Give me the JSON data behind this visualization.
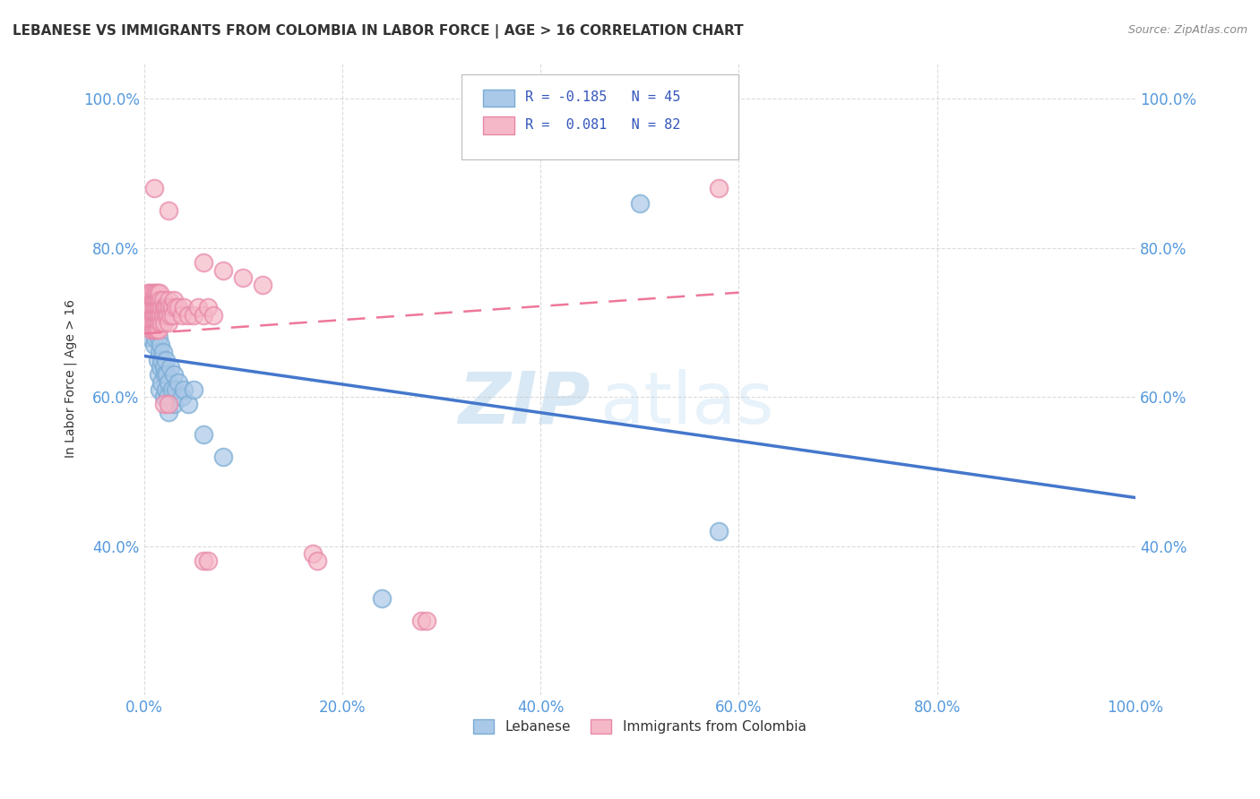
{
  "title": "LEBANESE VS IMMIGRANTS FROM COLOMBIA IN LABOR FORCE | AGE > 16 CORRELATION CHART",
  "source": "Source: ZipAtlas.com",
  "ylabel": "In Labor Force | Age > 16",
  "xlim": [
    0.0,
    1.0
  ],
  "ylim": [
    0.2,
    1.05
  ],
  "xticks": [
    0.0,
    0.2,
    0.4,
    0.6,
    0.8,
    1.0
  ],
  "yticks": [
    0.2,
    0.4,
    0.6,
    0.8,
    1.0
  ],
  "xticklabels": [
    "0.0%",
    "20.0%",
    "40.0%",
    "60.0%",
    "80.0%",
    "100.0%"
  ],
  "yticklabels": [
    "",
    "40.0%",
    "60.0%",
    "80.0%",
    "100.0%"
  ],
  "background_color": "#ffffff",
  "grid_color": "#cccccc",
  "watermark_zip": "ZIP",
  "watermark_atlas": "atlas",
  "blue_color": "#aac8e8",
  "blue_edge_color": "#7aacd4",
  "pink_color": "#f5b8c8",
  "pink_edge_color": "#e888a8",
  "blue_line_color": "#4477cc",
  "pink_line_color": "#ee7799",
  "blue_scatter": [
    [
      0.004,
      0.72
    ],
    [
      0.006,
      0.7
    ],
    [
      0.007,
      0.68
    ],
    [
      0.008,
      0.71
    ],
    [
      0.009,
      0.69
    ],
    [
      0.01,
      0.67
    ],
    [
      0.01,
      0.72
    ],
    [
      0.011,
      0.68
    ],
    [
      0.012,
      0.7
    ],
    [
      0.013,
      0.69
    ],
    [
      0.014,
      0.71
    ],
    [
      0.014,
      0.65
    ],
    [
      0.015,
      0.68
    ],
    [
      0.015,
      0.63
    ],
    [
      0.016,
      0.66
    ],
    [
      0.016,
      0.61
    ],
    [
      0.017,
      0.67
    ],
    [
      0.017,
      0.64
    ],
    [
      0.018,
      0.65
    ],
    [
      0.018,
      0.62
    ],
    [
      0.019,
      0.66
    ],
    [
      0.02,
      0.64
    ],
    [
      0.02,
      0.6
    ],
    [
      0.021,
      0.63
    ],
    [
      0.022,
      0.65
    ],
    [
      0.022,
      0.61
    ],
    [
      0.023,
      0.63
    ],
    [
      0.024,
      0.6
    ],
    [
      0.025,
      0.62
    ],
    [
      0.025,
      0.58
    ],
    [
      0.027,
      0.64
    ],
    [
      0.028,
      0.61
    ],
    [
      0.03,
      0.63
    ],
    [
      0.03,
      0.59
    ],
    [
      0.032,
      0.61
    ],
    [
      0.035,
      0.62
    ],
    [
      0.038,
      0.6
    ],
    [
      0.04,
      0.61
    ],
    [
      0.045,
      0.59
    ],
    [
      0.05,
      0.61
    ],
    [
      0.06,
      0.55
    ],
    [
      0.08,
      0.52
    ],
    [
      0.5,
      0.86
    ],
    [
      0.58,
      0.42
    ],
    [
      0.24,
      0.33
    ]
  ],
  "pink_scatter": [
    [
      0.002,
      0.72
    ],
    [
      0.003,
      0.73
    ],
    [
      0.004,
      0.74
    ],
    [
      0.004,
      0.71
    ],
    [
      0.005,
      0.73
    ],
    [
      0.005,
      0.7
    ],
    [
      0.006,
      0.74
    ],
    [
      0.006,
      0.71
    ],
    [
      0.007,
      0.73
    ],
    [
      0.007,
      0.72
    ],
    [
      0.007,
      0.69
    ],
    [
      0.008,
      0.74
    ],
    [
      0.008,
      0.72
    ],
    [
      0.008,
      0.7
    ],
    [
      0.009,
      0.73
    ],
    [
      0.009,
      0.71
    ],
    [
      0.009,
      0.69
    ],
    [
      0.01,
      0.74
    ],
    [
      0.01,
      0.72
    ],
    [
      0.01,
      0.7
    ],
    [
      0.011,
      0.73
    ],
    [
      0.011,
      0.71
    ],
    [
      0.011,
      0.69
    ],
    [
      0.012,
      0.74
    ],
    [
      0.012,
      0.72
    ],
    [
      0.012,
      0.7
    ],
    [
      0.013,
      0.73
    ],
    [
      0.013,
      0.71
    ],
    [
      0.013,
      0.69
    ],
    [
      0.014,
      0.74
    ],
    [
      0.014,
      0.72
    ],
    [
      0.014,
      0.7
    ],
    [
      0.015,
      0.73
    ],
    [
      0.015,
      0.71
    ],
    [
      0.015,
      0.69
    ],
    [
      0.016,
      0.74
    ],
    [
      0.016,
      0.72
    ],
    [
      0.016,
      0.7
    ],
    [
      0.017,
      0.73
    ],
    [
      0.017,
      0.71
    ],
    [
      0.018,
      0.72
    ],
    [
      0.018,
      0.7
    ],
    [
      0.019,
      0.73
    ],
    [
      0.019,
      0.71
    ],
    [
      0.02,
      0.72
    ],
    [
      0.02,
      0.7
    ],
    [
      0.021,
      0.72
    ],
    [
      0.022,
      0.71
    ],
    [
      0.023,
      0.72
    ],
    [
      0.024,
      0.71
    ],
    [
      0.025,
      0.73
    ],
    [
      0.025,
      0.7
    ],
    [
      0.026,
      0.72
    ],
    [
      0.027,
      0.71
    ],
    [
      0.028,
      0.72
    ],
    [
      0.029,
      0.71
    ],
    [
      0.03,
      0.73
    ],
    [
      0.032,
      0.72
    ],
    [
      0.035,
      0.72
    ],
    [
      0.038,
      0.71
    ],
    [
      0.04,
      0.72
    ],
    [
      0.045,
      0.71
    ],
    [
      0.05,
      0.71
    ],
    [
      0.055,
      0.72
    ],
    [
      0.06,
      0.71
    ],
    [
      0.065,
      0.72
    ],
    [
      0.07,
      0.71
    ],
    [
      0.01,
      0.88
    ],
    [
      0.025,
      0.85
    ],
    [
      0.06,
      0.78
    ],
    [
      0.08,
      0.77
    ],
    [
      0.1,
      0.76
    ],
    [
      0.12,
      0.75
    ],
    [
      0.02,
      0.59
    ],
    [
      0.025,
      0.59
    ],
    [
      0.06,
      0.38
    ],
    [
      0.065,
      0.38
    ],
    [
      0.17,
      0.39
    ],
    [
      0.175,
      0.38
    ],
    [
      0.28,
      0.3
    ],
    [
      0.285,
      0.3
    ],
    [
      0.58,
      0.88
    ]
  ],
  "blue_line_x": [
    0.0,
    1.0
  ],
  "blue_line_y": [
    0.655,
    0.465
  ],
  "pink_line_x": [
    0.0,
    0.6
  ],
  "pink_line_y": [
    0.685,
    0.74
  ]
}
